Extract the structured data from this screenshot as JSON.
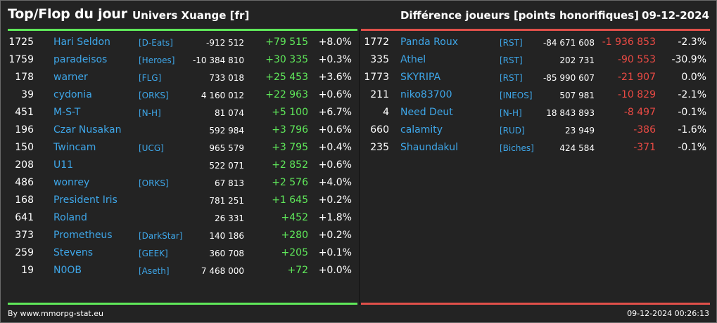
{
  "header": {
    "title": "Top/Flop du jour",
    "universe": "Univers Xuange [fr]",
    "metric": "Différence joueurs [points honorifiques]",
    "date": "09-12-2024"
  },
  "colors": {
    "gain": "#5fe85a",
    "loss": "#ea4a44",
    "player_link": "#3ea6e8",
    "background": "#232323"
  },
  "top": [
    {
      "rank": "1725",
      "name": "Hari Seldon",
      "alliance": "[D-Eats]",
      "points": "-912 512",
      "diff": "+79 515",
      "pct": "+8.0%"
    },
    {
      "rank": "1759",
      "name": "paradeisos",
      "alliance": "[Heroes]",
      "points": "-10 384 810",
      "diff": "+30 335",
      "pct": "+0.3%"
    },
    {
      "rank": "178",
      "name": "warner",
      "alliance": "[FLG]",
      "points": "733 018",
      "diff": "+25 453",
      "pct": "+3.6%"
    },
    {
      "rank": "39",
      "name": "cydonia",
      "alliance": "[ORKS]",
      "points": "4 160 012",
      "diff": "+22 963",
      "pct": "+0.6%"
    },
    {
      "rank": "451",
      "name": "M-S-T",
      "alliance": "[N-H]",
      "points": "81 074",
      "diff": "+5 100",
      "pct": "+6.7%"
    },
    {
      "rank": "196",
      "name": "Czar Nusakan",
      "alliance": "",
      "points": "592 984",
      "diff": "+3 796",
      "pct": "+0.6%"
    },
    {
      "rank": "150",
      "name": "Twincam",
      "alliance": "[UCG]",
      "points": "965 579",
      "diff": "+3 795",
      "pct": "+0.4%"
    },
    {
      "rank": "208",
      "name": "U11",
      "alliance": "",
      "points": "522 071",
      "diff": "+2 852",
      "pct": "+0.6%"
    },
    {
      "rank": "486",
      "name": "wonrey",
      "alliance": "[ORKS]",
      "points": "67 813",
      "diff": "+2 576",
      "pct": "+4.0%"
    },
    {
      "rank": "168",
      "name": "President Iris",
      "alliance": "",
      "points": "781 251",
      "diff": "+1 645",
      "pct": "+0.2%"
    },
    {
      "rank": "641",
      "name": "Roland",
      "alliance": "",
      "points": "26 331",
      "diff": "+452",
      "pct": "+1.8%"
    },
    {
      "rank": "373",
      "name": "Prometheus",
      "alliance": "[DarkStar]",
      "points": "140 186",
      "diff": "+280",
      "pct": "+0.2%"
    },
    {
      "rank": "259",
      "name": "Stevens",
      "alliance": "[GEEK]",
      "points": "360 708",
      "diff": "+205",
      "pct": "+0.1%"
    },
    {
      "rank": "19",
      "name": "N0OB",
      "alliance": "[Aseth]",
      "points": "7 468 000",
      "diff": "+72",
      "pct": "+0.0%"
    }
  ],
  "flop": [
    {
      "rank": "1772",
      "name": "Panda Roux",
      "alliance": "[RST]",
      "points": "-84 671 608",
      "diff": "-1 936 853",
      "pct": "-2.3%"
    },
    {
      "rank": "335",
      "name": "Athel",
      "alliance": "[RST]",
      "points": "202 731",
      "diff": "-90 553",
      "pct": "-30.9%"
    },
    {
      "rank": "1773",
      "name": "SKYRIPA",
      "alliance": "[RST]",
      "points": "-85 990 607",
      "diff": "-21 907",
      "pct": "0.0%"
    },
    {
      "rank": "211",
      "name": "niko83700",
      "alliance": "[INEOS]",
      "points": "507 981",
      "diff": "-10 829",
      "pct": "-2.1%"
    },
    {
      "rank": "4",
      "name": "Need Deut",
      "alliance": "[N-H]",
      "points": "18 843 893",
      "diff": "-8 497",
      "pct": "-0.1%"
    },
    {
      "rank": "660",
      "name": "calamity",
      "alliance": "[RUD]",
      "points": "23 949",
      "diff": "-386",
      "pct": "-1.6%"
    },
    {
      "rank": "235",
      "name": "Shaundakul",
      "alliance": "[Biches]",
      "points": "424 584",
      "diff": "-371",
      "pct": "-0.1%"
    }
  ],
  "footer": {
    "credit": "By www.mmorpg-stat.eu",
    "generated": "09-12-2024 00:26:13"
  }
}
